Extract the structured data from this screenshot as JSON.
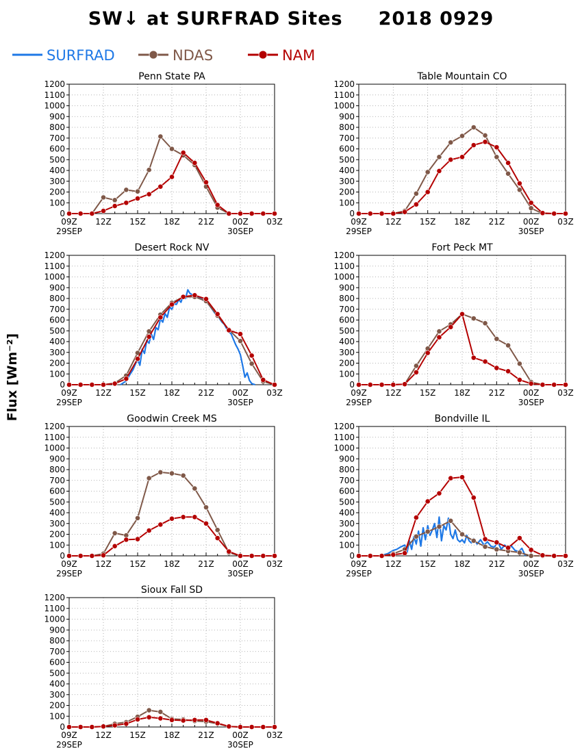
{
  "title": "SW↓ at SURFRAD Sites     2018 0929",
  "ylabel": "Flux [Wm⁻²]",
  "legend": [
    {
      "name": "SURFRAD",
      "color": "#1e78e6",
      "marker": false
    },
    {
      "name": "NDAS",
      "color": "#7f5848",
      "marker": true
    },
    {
      "name": "NAM",
      "color": "#b40000",
      "marker": true
    }
  ],
  "x_ticks": [
    "09Z",
    "12Z",
    "15Z",
    "18Z",
    "21Z",
    "00Z",
    "03Z"
  ],
  "x_dates": [
    "29SEP",
    "30SEP"
  ],
  "y_ticks": [
    0,
    100,
    200,
    300,
    400,
    500,
    600,
    700,
    800,
    900,
    1000,
    1100,
    1200
  ],
  "chart_data": [
    {
      "type": "line",
      "title": "Penn State PA",
      "xlim": [
        9,
        27
      ],
      "ylim": [
        0,
        1200
      ],
      "series": [
        {
          "name": "NDAS",
          "x": [
            9,
            10,
            11,
            12,
            13,
            14,
            15,
            16,
            17,
            18,
            19,
            20,
            21,
            22,
            23,
            24,
            25,
            26,
            27
          ],
          "values": [
            0,
            0,
            0,
            150,
            125,
            220,
            205,
            405,
            715,
            600,
            540,
            450,
            250,
            55,
            0,
            0,
            0,
            0,
            0
          ]
        },
        {
          "name": "NAM",
          "x": [
            9,
            10,
            11,
            12,
            13,
            14,
            15,
            16,
            17,
            18,
            19,
            20,
            21,
            22,
            23,
            24,
            25,
            26,
            27
          ],
          "values": [
            0,
            0,
            0,
            25,
            70,
            100,
            140,
            180,
            250,
            340,
            565,
            470,
            290,
            80,
            0,
            0,
            0,
            0,
            0
          ]
        }
      ]
    },
    {
      "type": "line",
      "title": "Table Mountain CO",
      "xlim": [
        9,
        27
      ],
      "ylim": [
        0,
        1200
      ],
      "series": [
        {
          "name": "NDAS",
          "x": [
            9,
            10,
            11,
            12,
            13,
            14,
            15,
            16,
            17,
            18,
            19,
            20,
            21,
            22,
            23,
            24,
            25,
            26,
            27
          ],
          "values": [
            0,
            0,
            0,
            0,
            25,
            185,
            385,
            525,
            660,
            720,
            800,
            725,
            525,
            370,
            220,
            50,
            0,
            0,
            0
          ]
        },
        {
          "name": "NAM",
          "x": [
            9,
            10,
            11,
            12,
            13,
            14,
            15,
            16,
            17,
            18,
            19,
            20,
            21,
            22,
            23,
            24,
            25,
            26,
            27
          ],
          "values": [
            0,
            0,
            0,
            0,
            15,
            85,
            200,
            395,
            500,
            525,
            635,
            665,
            615,
            470,
            280,
            100,
            5,
            0,
            0
          ]
        }
      ]
    },
    {
      "type": "line",
      "title": "Desert Rock NV",
      "xlim": [
        9,
        27
      ],
      "ylim": [
        0,
        1200
      ],
      "series": [
        {
          "name": "SURFRAD",
          "x": [
            13.5,
            14,
            14.3,
            14.6,
            15,
            15.2,
            15.4,
            15.6,
            15.8,
            16,
            16.2,
            16.4,
            16.6,
            16.8,
            17,
            17.2,
            17.4,
            17.6,
            17.8,
            18,
            18.2,
            18.4,
            18.6,
            18.8,
            19,
            19.2,
            19.4,
            19.6,
            19.8,
            20,
            20.2,
            20.4,
            20.6,
            20.8,
            21,
            21.2,
            21.4,
            21.6,
            21.8,
            22,
            22.2,
            22.4,
            22.6,
            22.8,
            23,
            23.2,
            23.4,
            23.6,
            23.8,
            24,
            24.2,
            24.4,
            24.6,
            24.8,
            25,
            25.3
          ],
          "values": [
            0,
            35,
            90,
            140,
            240,
            180,
            330,
            290,
            410,
            385,
            470,
            420,
            530,
            510,
            610,
            580,
            660,
            625,
            720,
            700,
            750,
            745,
            790,
            765,
            830,
            800,
            880,
            845,
            835,
            820,
            810,
            805,
            795,
            780,
            765,
            750,
            720,
            690,
            660,
            640,
            610,
            580,
            560,
            520,
            490,
            470,
            420,
            370,
            330,
            280,
            180,
            70,
            110,
            40,
            10,
            0
          ]
        },
        {
          "name": "NDAS",
          "x": [
            9,
            10,
            11,
            12,
            13,
            14,
            15,
            16,
            17,
            18,
            19,
            20,
            21,
            22,
            23,
            24,
            25,
            26,
            27
          ],
          "values": [
            0,
            0,
            0,
            0,
            15,
            85,
            295,
            495,
            650,
            760,
            815,
            815,
            775,
            640,
            510,
            405,
            195,
            30,
            0
          ]
        },
        {
          "name": "NAM",
          "x": [
            9,
            10,
            11,
            12,
            13,
            14,
            15,
            16,
            17,
            18,
            19,
            20,
            21,
            22,
            23,
            24,
            25,
            26,
            27
          ],
          "values": [
            0,
            0,
            0,
            0,
            10,
            55,
            240,
            445,
            625,
            745,
            815,
            830,
            795,
            655,
            505,
            470,
            270,
            45,
            0
          ]
        }
      ]
    },
    {
      "type": "line",
      "title": "Fort Peck MT",
      "xlim": [
        9,
        27
      ],
      "ylim": [
        0,
        1200
      ],
      "series": [
        {
          "name": "NDAS",
          "x": [
            9,
            10,
            11,
            12,
            13,
            14,
            15,
            16,
            17,
            18,
            19,
            20,
            21,
            22,
            23,
            24,
            25,
            26,
            27
          ],
          "values": [
            0,
            0,
            0,
            0,
            5,
            175,
            335,
            495,
            560,
            655,
            615,
            570,
            425,
            365,
            195,
            25,
            0,
            0,
            0
          ]
        },
        {
          "name": "NAM",
          "x": [
            9,
            10,
            11,
            12,
            13,
            14,
            15,
            16,
            17,
            18,
            19,
            20,
            21,
            22,
            23,
            24,
            25,
            26,
            27
          ],
          "values": [
            0,
            0,
            0,
            0,
            5,
            115,
            295,
            440,
            535,
            655,
            250,
            215,
            155,
            125,
            45,
            10,
            0,
            0,
            0
          ]
        }
      ]
    },
    {
      "type": "line",
      "title": "Goodwin Creek MS",
      "xlim": [
        9,
        27
      ],
      "ylim": [
        0,
        1200
      ],
      "series": [
        {
          "name": "NDAS",
          "x": [
            9,
            10,
            11,
            12,
            13,
            14,
            15,
            16,
            17,
            18,
            19,
            20,
            21,
            22,
            23,
            24,
            25,
            26,
            27
          ],
          "values": [
            0,
            0,
            0,
            20,
            210,
            190,
            350,
            720,
            775,
            765,
            745,
            625,
            450,
            240,
            30,
            0,
            0,
            0,
            0
          ]
        },
        {
          "name": "NAM",
          "x": [
            9,
            10,
            11,
            12,
            13,
            14,
            15,
            16,
            17,
            18,
            19,
            20,
            21,
            22,
            23,
            24,
            25,
            26,
            27
          ],
          "values": [
            0,
            0,
            0,
            5,
            90,
            150,
            155,
            235,
            290,
            345,
            360,
            360,
            300,
            165,
            40,
            0,
            0,
            0,
            0
          ]
        }
      ]
    },
    {
      "type": "line",
      "title": "Bondville IL",
      "xlim": [
        9,
        27
      ],
      "ylim": [
        0,
        1200
      ],
      "series": [
        {
          "name": "SURFRAD",
          "x": [
            11,
            11.5,
            12,
            12.3,
            12.6,
            13,
            13.2,
            13.4,
            13.6,
            13.8,
            14,
            14.2,
            14.4,
            14.6,
            14.8,
            15,
            15.2,
            15.4,
            15.6,
            15.8,
            16,
            16.2,
            16.4,
            16.6,
            16.8,
            17,
            17.2,
            17.4,
            17.6,
            17.8,
            18,
            18.2,
            18.4,
            18.6,
            18.8,
            19,
            19.3,
            19.6,
            19.9,
            20.2,
            20.5,
            20.8,
            21.1,
            21.4,
            21.7,
            22,
            22.3,
            22.6,
            22.9,
            23.2,
            23.5
          ],
          "values": [
            5,
            20,
            50,
            60,
            80,
            100,
            30,
            140,
            60,
            180,
            110,
            230,
            90,
            260,
            150,
            280,
            190,
            240,
            300,
            170,
            360,
            140,
            280,
            240,
            350,
            200,
            160,
            240,
            150,
            130,
            150,
            120,
            190,
            140,
            120,
            160,
            110,
            150,
            100,
            130,
            90,
            80,
            130,
            60,
            100,
            70,
            90,
            50,
            40,
            70,
            0
          ]
        },
        {
          "name": "NDAS",
          "x": [
            9,
            10,
            11,
            12,
            13,
            14,
            15,
            16,
            17,
            18,
            19,
            20,
            21,
            22,
            23,
            24,
            25,
            26,
            27
          ],
          "values": [
            0,
            0,
            0,
            20,
            60,
            180,
            225,
            270,
            325,
            200,
            140,
            85,
            60,
            45,
            30,
            0,
            0,
            0,
            0
          ]
        },
        {
          "name": "NAM",
          "x": [
            9,
            10,
            11,
            12,
            13,
            14,
            15,
            16,
            17,
            18,
            19,
            20,
            21,
            22,
            23,
            24,
            25,
            26,
            27
          ],
          "values": [
            0,
            0,
            0,
            10,
            25,
            355,
            505,
            580,
            720,
            730,
            540,
            155,
            125,
            75,
            165,
            55,
            5,
            0,
            0
          ]
        }
      ]
    },
    {
      "type": "line",
      "title": "Sioux Fall SD",
      "xlim": [
        9,
        27
      ],
      "ylim": [
        0,
        1200
      ],
      "series": [
        {
          "name": "NDAS",
          "x": [
            9,
            10,
            11,
            12,
            13,
            14,
            15,
            16,
            17,
            18,
            19,
            20,
            21,
            22,
            23,
            24,
            25,
            26,
            27
          ],
          "values": [
            0,
            0,
            0,
            5,
            30,
            45,
            95,
            155,
            140,
            75,
            70,
            55,
            50,
            30,
            5,
            0,
            0,
            0,
            0
          ]
        },
        {
          "name": "NAM",
          "x": [
            9,
            10,
            11,
            12,
            13,
            14,
            15,
            16,
            17,
            18,
            19,
            20,
            21,
            22,
            23,
            24,
            25,
            26,
            27
          ],
          "values": [
            0,
            0,
            0,
            5,
            15,
            30,
            70,
            90,
            80,
            65,
            60,
            65,
            65,
            35,
            5,
            0,
            0,
            0,
            0
          ]
        }
      ]
    }
  ]
}
